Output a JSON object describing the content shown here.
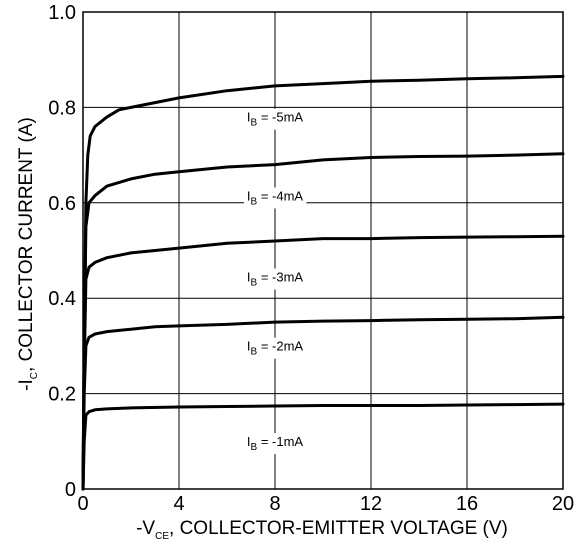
{
  "chart_data": {
    "type": "line",
    "title": "",
    "xlabel": {
      "prefix": "-V",
      "sub": "CE",
      "suffix": ", COLLECTOR-EMITTER VOLTAGE (V)"
    },
    "ylabel": {
      "prefix": "-I",
      "sub": "C",
      "suffix": ", COLLECTOR CURRENT (A)"
    },
    "xlim": [
      0,
      20
    ],
    "ylim": [
      0,
      1.0
    ],
    "xticks": [
      0,
      4,
      8,
      12,
      16,
      20
    ],
    "xtick_labels": [
      "0",
      "4",
      "8",
      "12",
      "16",
      "20"
    ],
    "yticks": [
      0,
      0.2,
      0.4,
      0.6,
      0.8,
      1.0
    ],
    "ytick_labels": [
      "0",
      "0.2",
      "0.4",
      "0.6",
      "0.8",
      "1.0"
    ],
    "grid": true,
    "legend": "none",
    "line_color": "#000000",
    "series": [
      {
        "label": {
          "prefix": "I",
          "sub": "B",
          "suffix": " = -5mA"
        },
        "label_at": [
          8,
          0.77
        ],
        "points": [
          [
            0,
            0
          ],
          [
            0.05,
            0.3
          ],
          [
            0.12,
            0.6
          ],
          [
            0.2,
            0.7
          ],
          [
            0.3,
            0.74
          ],
          [
            0.5,
            0.76
          ],
          [
            1,
            0.78
          ],
          [
            1.5,
            0.795
          ],
          [
            2,
            0.8
          ],
          [
            3,
            0.81
          ],
          [
            4,
            0.82
          ],
          [
            6,
            0.835
          ],
          [
            8,
            0.845
          ],
          [
            10,
            0.85
          ],
          [
            12,
            0.855
          ],
          [
            14,
            0.857
          ],
          [
            16,
            0.86
          ],
          [
            18,
            0.862
          ],
          [
            20,
            0.865
          ]
        ]
      },
      {
        "label": {
          "prefix": "I",
          "sub": "B",
          "suffix": " = -4mA"
        },
        "label_at": [
          8,
          0.605
        ],
        "points": [
          [
            0,
            0
          ],
          [
            0.05,
            0.3
          ],
          [
            0.12,
            0.55
          ],
          [
            0.25,
            0.6
          ],
          [
            0.5,
            0.615
          ],
          [
            1,
            0.635
          ],
          [
            2,
            0.65
          ],
          [
            3,
            0.66
          ],
          [
            4,
            0.665
          ],
          [
            6,
            0.675
          ],
          [
            8,
            0.68
          ],
          [
            10,
            0.69
          ],
          [
            12,
            0.695
          ],
          [
            14,
            0.697
          ],
          [
            16,
            0.698
          ],
          [
            18,
            0.7
          ],
          [
            20,
            0.703
          ]
        ]
      },
      {
        "label": {
          "prefix": "I",
          "sub": "B",
          "suffix": " = -3mA"
        },
        "label_at": [
          8,
          0.435
        ],
        "points": [
          [
            0,
            0
          ],
          [
            0.05,
            0.25
          ],
          [
            0.12,
            0.44
          ],
          [
            0.25,
            0.465
          ],
          [
            0.5,
            0.475
          ],
          [
            1,
            0.485
          ],
          [
            2,
            0.495
          ],
          [
            3,
            0.5
          ],
          [
            4,
            0.505
          ],
          [
            6,
            0.515
          ],
          [
            8,
            0.52
          ],
          [
            10,
            0.525
          ],
          [
            12,
            0.525
          ],
          [
            14,
            0.527
          ],
          [
            16,
            0.528
          ],
          [
            18,
            0.529
          ],
          [
            20,
            0.53
          ]
        ]
      },
      {
        "label": {
          "prefix": "I",
          "sub": "B",
          "suffix": " = -2mA"
        },
        "label_at": [
          8,
          0.29
        ],
        "points": [
          [
            0,
            0
          ],
          [
            0.05,
            0.2
          ],
          [
            0.12,
            0.3
          ],
          [
            0.25,
            0.318
          ],
          [
            0.5,
            0.325
          ],
          [
            1,
            0.33
          ],
          [
            2,
            0.335
          ],
          [
            3,
            0.34
          ],
          [
            4,
            0.342
          ],
          [
            6,
            0.345
          ],
          [
            8,
            0.35
          ],
          [
            10,
            0.352
          ],
          [
            12,
            0.353
          ],
          [
            14,
            0.355
          ],
          [
            16,
            0.356
          ],
          [
            18,
            0.357
          ],
          [
            20,
            0.36
          ]
        ]
      },
      {
        "label": {
          "prefix": "I",
          "sub": "B",
          "suffix": " = -1mA"
        },
        "label_at": [
          8,
          0.09
        ],
        "points": [
          [
            0,
            0
          ],
          [
            0.05,
            0.1
          ],
          [
            0.12,
            0.155
          ],
          [
            0.25,
            0.162
          ],
          [
            0.5,
            0.166
          ],
          [
            1,
            0.168
          ],
          [
            2,
            0.17
          ],
          [
            4,
            0.172
          ],
          [
            6,
            0.173
          ],
          [
            8,
            0.174
          ],
          [
            10,
            0.175
          ],
          [
            12,
            0.175
          ],
          [
            14,
            0.175
          ],
          [
            16,
            0.176
          ],
          [
            18,
            0.177
          ],
          [
            20,
            0.178
          ]
        ]
      }
    ]
  }
}
